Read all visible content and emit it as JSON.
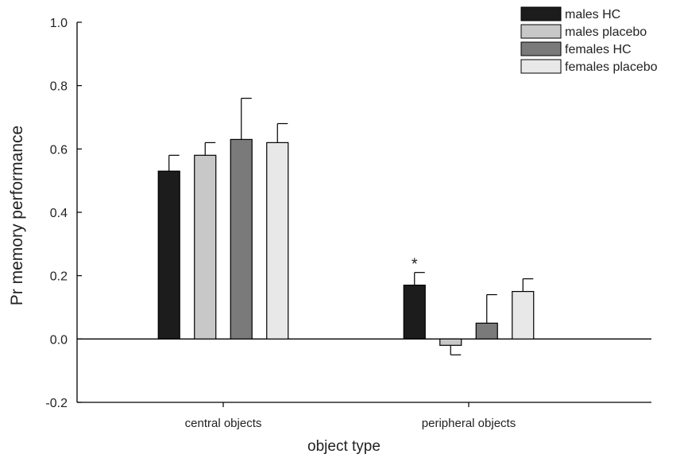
{
  "chart_data": {
    "type": "bar",
    "xlabel": "object type",
    "ylabel": "Pr memory performance",
    "ylim": [
      -0.2,
      1.0
    ],
    "yticks": [
      "-0.2",
      "0.0",
      "0.2",
      "0.4",
      "0.6",
      "0.8",
      "1.0"
    ],
    "categories": [
      "central objects",
      "peripheral objects"
    ],
    "series": [
      {
        "name": "males HC",
        "color": "#1c1c1c",
        "values": [
          0.53,
          0.17
        ],
        "errors": [
          0.05,
          0.04
        ]
      },
      {
        "name": "males placebo",
        "color": "#c8c8c8",
        "values": [
          0.58,
          -0.02
        ],
        "errors": [
          0.04,
          0.03
        ]
      },
      {
        "name": "females HC",
        "color": "#7a7a7a",
        "values": [
          0.63,
          0.05
        ],
        "errors": [
          0.13,
          0.09
        ]
      },
      {
        "name": "females placebo",
        "color": "#e8e8e8",
        "values": [
          0.62,
          0.15
        ],
        "errors": [
          0.06,
          0.04
        ]
      }
    ],
    "annotations": [
      {
        "text": "*",
        "category": "peripheral objects",
        "series": "males HC"
      }
    ],
    "legend": "top-right",
    "grid": false
  }
}
